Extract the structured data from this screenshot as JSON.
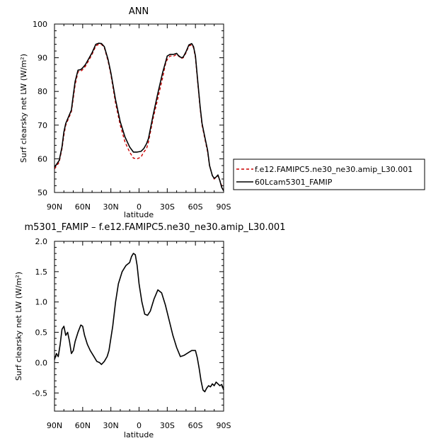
{
  "chart_data": [
    {
      "type": "line",
      "title": "ANN",
      "xlabel": "latitude",
      "ylabel": "Surf clearsky net LW (W/m²)",
      "xlim": [
        90,
        -90
      ],
      "ylim": [
        50,
        100
      ],
      "x_ticks": [
        {
          "v": 90,
          "label": "90N"
        },
        {
          "v": 60,
          "label": "60N"
        },
        {
          "v": 30,
          "label": "30N"
        },
        {
          "v": 0,
          "label": "0"
        },
        {
          "v": -30,
          "label": "30S"
        },
        {
          "v": -60,
          "label": "60S"
        },
        {
          "v": -90,
          "label": "90S"
        }
      ],
      "y_ticks": [
        50,
        60,
        70,
        80,
        90,
        100
      ],
      "legend": "right",
      "series": [
        {
          "name": "f.e12.FAMIPC5.ne30_ne30.amip_L30.001",
          "color": "#cc0000",
          "dash": true,
          "points": [
            [
              90,
              57
            ],
            [
              85,
              59
            ],
            [
              82,
              63
            ],
            [
              80,
              67
            ],
            [
              78,
              70
            ],
            [
              75,
              72
            ],
            [
              72,
              74
            ],
            [
              70,
              78
            ],
            [
              68,
              82
            ],
            [
              65,
              85.8
            ],
            [
              62,
              86
            ],
            [
              60,
              86.5
            ],
            [
              57,
              87.5
            ],
            [
              54,
              89
            ],
            [
              50,
              91
            ],
            [
              46,
              93.5
            ],
            [
              43,
              94
            ],
            [
              40,
              94
            ],
            [
              37,
              93
            ],
            [
              33,
              89
            ],
            [
              30,
              85
            ],
            [
              25,
              76.5
            ],
            [
              20,
              70
            ],
            [
              15,
              65
            ],
            [
              10,
              62
            ],
            [
              6,
              60.2
            ],
            [
              2,
              60
            ],
            [
              -2,
              60.5
            ],
            [
              -5,
              62
            ],
            [
              -8,
              63
            ],
            [
              -10,
              65
            ],
            [
              -15,
              72
            ],
            [
              -20,
              78
            ],
            [
              -25,
              84
            ],
            [
              -28,
              88
            ],
            [
              -30,
              89.5
            ],
            [
              -33,
              90.5
            ],
            [
              -37,
              90.5
            ],
            [
              -40,
              91
            ],
            [
              -42,
              90.5
            ],
            [
              -45,
              89.8
            ],
            [
              -47,
              90
            ],
            [
              -50,
              91.5
            ],
            [
              -53,
              93.5
            ],
            [
              -56,
              93.8
            ],
            [
              -58,
              93
            ],
            [
              -60,
              90
            ],
            [
              -62,
              84
            ],
            [
              -65,
              75
            ],
            [
              -67,
              70
            ],
            [
              -70,
              66
            ],
            [
              -73,
              62
            ],
            [
              -75,
              58
            ],
            [
              -78,
              55
            ],
            [
              -80,
              54
            ],
            [
              -82,
              54.5
            ],
            [
              -84,
              55
            ],
            [
              -86,
              53.5
            ],
            [
              -88,
              52
            ],
            [
              -90,
              51.2
            ]
          ]
        },
        {
          "name": "60Lcam5301_FAMIP",
          "color": "#000000",
          "dash": false,
          "points": [
            [
              90,
              57.5
            ],
            [
              85,
              59.5
            ],
            [
              82,
              63.5
            ],
            [
              80,
              68
            ],
            [
              78,
              70.5
            ],
            [
              75,
              72.5
            ],
            [
              72,
              74.5
            ],
            [
              70,
              79
            ],
            [
              68,
              83
            ],
            [
              65,
              86.3
            ],
            [
              62,
              86.5
            ],
            [
              60,
              87
            ],
            [
              57,
              88
            ],
            [
              54,
              89.5
            ],
            [
              50,
              91.5
            ],
            [
              46,
              94
            ],
            [
              43,
              94.3
            ],
            [
              40,
              94.2
            ],
            [
              37,
              93.3
            ],
            [
              33,
              89.5
            ],
            [
              30,
              85.5
            ],
            [
              25,
              77.5
            ],
            [
              20,
              71
            ],
            [
              15,
              66.5
            ],
            [
              10,
              63.5
            ],
            [
              6,
              62
            ],
            [
              2,
              62
            ],
            [
              -2,
              62.2
            ],
            [
              -5,
              63
            ],
            [
              -8,
              64.5
            ],
            [
              -10,
              66
            ],
            [
              -15,
              73
            ],
            [
              -20,
              79.5
            ],
            [
              -25,
              85.5
            ],
            [
              -28,
              88.5
            ],
            [
              -30,
              90.5
            ],
            [
              -33,
              91
            ],
            [
              -37,
              91
            ],
            [
              -40,
              91.3
            ],
            [
              -42,
              90.6
            ],
            [
              -45,
              90
            ],
            [
              -47,
              90.2
            ],
            [
              -50,
              91.8
            ],
            [
              -53,
              93.8
            ],
            [
              -56,
              94.2
            ],
            [
              -58,
              93.3
            ],
            [
              -60,
              90.5
            ],
            [
              -62,
              84.5
            ],
            [
              -65,
              75.5
            ],
            [
              -67,
              70.5
            ],
            [
              -70,
              66.5
            ],
            [
              -73,
              62.5
            ],
            [
              -75,
              58
            ],
            [
              -78,
              55
            ],
            [
              -80,
              54.2
            ],
            [
              -82,
              54.6
            ],
            [
              -84,
              55.2
            ],
            [
              -86,
              53.5
            ],
            [
              -88,
              51.5
            ],
            [
              -90,
              50.5
            ]
          ]
        }
      ]
    },
    {
      "type": "line",
      "title": "m5301_FAMIP – f.e12.FAMIPC5.ne30_ne30.amip_L30.001",
      "xlabel": "latitude",
      "ylabel": "Surf clearsky net LW (W/m²)",
      "xlim": [
        90,
        -90
      ],
      "ylim": [
        -0.8,
        2.0
      ],
      "x_ticks": [
        {
          "v": 90,
          "label": "90N"
        },
        {
          "v": 60,
          "label": "60N"
        },
        {
          "v": 30,
          "label": "30N"
        },
        {
          "v": 0,
          "label": "0"
        },
        {
          "v": -30,
          "label": "30S"
        },
        {
          "v": -60,
          "label": "60S"
        },
        {
          "v": -90,
          "label": "90S"
        }
      ],
      "y_ticks": [
        {
          "v": 2.0,
          "label": "2.0"
        },
        {
          "v": 1.5,
          "label": "1.5"
        },
        {
          "v": 1.0,
          "label": "1.0"
        },
        {
          "v": 0.5,
          "label": "0.5"
        },
        {
          "v": 0.0,
          "label": "0.0"
        },
        {
          "v": -0.5,
          "label": "-0.5"
        }
      ],
      "series": [
        {
          "color": "#000000",
          "dash": false,
          "points": [
            [
              90,
              0.05
            ],
            [
              88,
              0.15
            ],
            [
              86,
              0.1
            ],
            [
              84,
              0.3
            ],
            [
              82,
              0.55
            ],
            [
              80,
              0.6
            ],
            [
              78,
              0.45
            ],
            [
              76,
              0.5
            ],
            [
              74,
              0.35
            ],
            [
              72,
              0.15
            ],
            [
              70,
              0.2
            ],
            [
              68,
              0.35
            ],
            [
              65,
              0.5
            ],
            [
              62,
              0.62
            ],
            [
              60,
              0.6
            ],
            [
              58,
              0.45
            ],
            [
              55,
              0.3
            ],
            [
              52,
              0.2
            ],
            [
              48,
              0.1
            ],
            [
              45,
              0.02
            ],
            [
              42,
              0.0
            ],
            [
              40,
              -0.03
            ],
            [
              37,
              0.02
            ],
            [
              34,
              0.1
            ],
            [
              32,
              0.2
            ],
            [
              28,
              0.6
            ],
            [
              25,
              1.0
            ],
            [
              22,
              1.3
            ],
            [
              18,
              1.5
            ],
            [
              14,
              1.6
            ],
            [
              10,
              1.65
            ],
            [
              8,
              1.75
            ],
            [
              6,
              1.8
            ],
            [
              4,
              1.78
            ],
            [
              2,
              1.6
            ],
            [
              0,
              1.3
            ],
            [
              -3,
              1.0
            ],
            [
              -6,
              0.8
            ],
            [
              -9,
              0.78
            ],
            [
              -12,
              0.85
            ],
            [
              -16,
              1.05
            ],
            [
              -20,
              1.2
            ],
            [
              -24,
              1.15
            ],
            [
              -28,
              0.95
            ],
            [
              -32,
              0.7
            ],
            [
              -36,
              0.45
            ],
            [
              -40,
              0.25
            ],
            [
              -44,
              0.1
            ],
            [
              -48,
              0.12
            ],
            [
              -52,
              0.16
            ],
            [
              -56,
              0.2
            ],
            [
              -60,
              0.2
            ],
            [
              -62,
              0.08
            ],
            [
              -64,
              -0.1
            ],
            [
              -66,
              -0.3
            ],
            [
              -68,
              -0.45
            ],
            [
              -70,
              -0.48
            ],
            [
              -72,
              -0.42
            ],
            [
              -74,
              -0.38
            ],
            [
              -76,
              -0.4
            ],
            [
              -78,
              -0.35
            ],
            [
              -80,
              -0.38
            ],
            [
              -82,
              -0.32
            ],
            [
              -84,
              -0.35
            ],
            [
              -86,
              -0.38
            ],
            [
              -88,
              -0.36
            ],
            [
              -90,
              -0.45
            ]
          ]
        }
      ]
    }
  ]
}
